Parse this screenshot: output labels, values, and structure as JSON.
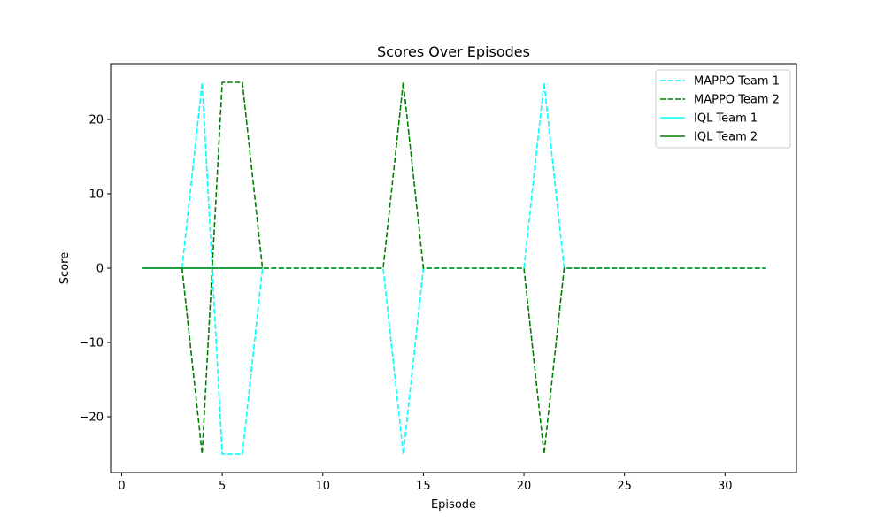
{
  "chart_data": {
    "type": "line",
    "title": "Scores Over Episodes",
    "xlabel": "Episode",
    "ylabel": "Score",
    "xlim": [
      -0.55,
      33.55
    ],
    "ylim": [
      -27.5,
      27.5
    ],
    "xticks": [
      0,
      5,
      10,
      15,
      20,
      25,
      30
    ],
    "yticks": [
      -20,
      -10,
      0,
      10,
      20
    ],
    "grid": false,
    "legend_position": "top-right",
    "series": [
      {
        "name": "MAPPO Team 1",
        "color": "#00ffff",
        "style": "dashed",
        "x": [
          3,
          4,
          5,
          6,
          7,
          8,
          9,
          10,
          11,
          12,
          13,
          14,
          15,
          16,
          17,
          18,
          19,
          20,
          21,
          22,
          23,
          24,
          25,
          26,
          27,
          28,
          29,
          30,
          31,
          32
        ],
        "y": [
          0,
          25,
          -25,
          -25,
          0,
          0,
          0,
          0,
          0,
          0,
          0,
          -25,
          0,
          0,
          0,
          0,
          0,
          0,
          25,
          0,
          0,
          0,
          0,
          0,
          0,
          0,
          0,
          0,
          0,
          0
        ]
      },
      {
        "name": "MAPPO Team 2",
        "color": "#008000",
        "style": "dashed",
        "x": [
          3,
          4,
          5,
          6,
          7,
          8,
          9,
          10,
          11,
          12,
          13,
          14,
          15,
          16,
          17,
          18,
          19,
          20,
          21,
          22,
          23,
          24,
          25,
          26,
          27,
          28,
          29,
          30,
          31,
          32
        ],
        "y": [
          0,
          -25,
          25,
          25,
          0,
          0,
          0,
          0,
          0,
          0,
          0,
          25,
          0,
          0,
          0,
          0,
          0,
          0,
          -25,
          0,
          0,
          0,
          0,
          0,
          0,
          0,
          0,
          0,
          0,
          0
        ]
      },
      {
        "name": "IQL Team 1",
        "color": "#00ffff",
        "style": "solid",
        "x": [
          1,
          2,
          3,
          4,
          5,
          6,
          7
        ],
        "y": [
          0,
          0,
          0,
          0,
          0,
          0,
          0
        ]
      },
      {
        "name": "IQL Team 2",
        "color": "#008000",
        "style": "solid",
        "x": [
          1,
          2,
          3,
          4,
          5,
          6,
          7
        ],
        "y": [
          0,
          0,
          0,
          0,
          0,
          0,
          0
        ]
      }
    ]
  }
}
